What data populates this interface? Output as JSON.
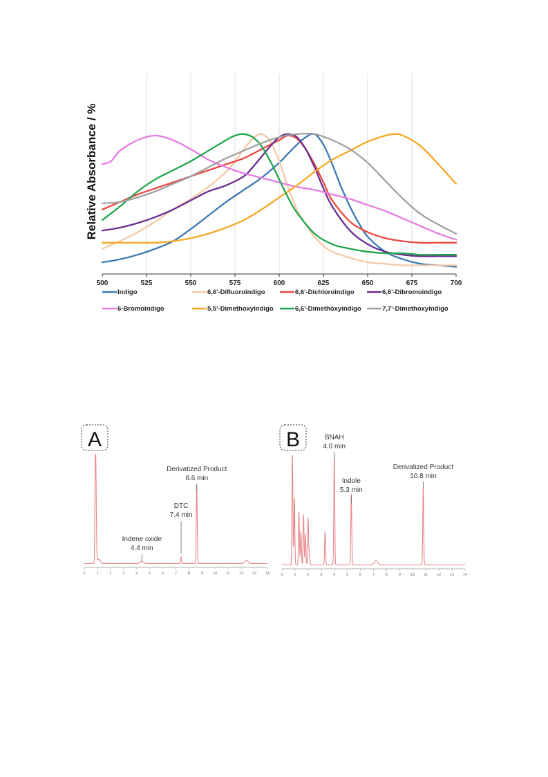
{
  "chart_data": [
    {
      "type": "line",
      "title": "",
      "xlabel": "",
      "ylabel": "Relative Absorbance / %",
      "xlim": [
        500,
        700
      ],
      "ylim": [
        0,
        100
      ],
      "x_ticks": [
        "500",
        "525",
        "550",
        "575",
        "600",
        "625",
        "650",
        "675",
        "700"
      ],
      "grid": "vertical",
      "legend_position": "bottom",
      "series": [
        {
          "name": "Indigo",
          "color": "#3a78b5",
          "x": [
            500,
            510,
            520,
            530,
            540,
            550,
            560,
            570,
            580,
            590,
            600,
            605,
            610,
            615,
            620,
            625,
            630,
            635,
            640,
            645,
            650,
            660,
            670,
            680,
            690,
            700
          ],
          "y": [
            5,
            7,
            10,
            14,
            19,
            27,
            36,
            45,
            53,
            61,
            71,
            77,
            83,
            88,
            90,
            83,
            70,
            55,
            42,
            31,
            22,
            12,
            7,
            4,
            3,
            2
          ]
        },
        {
          "name": "6,6'-Difluoroindigo",
          "color": "#f4c9a6",
          "x": [
            500,
            510,
            520,
            530,
            540,
            550,
            560,
            570,
            575,
            580,
            585,
            590,
            595,
            600,
            605,
            610,
            615,
            620,
            625,
            630,
            640,
            650,
            660,
            670,
            680,
            690,
            700
          ],
          "y": [
            14,
            19,
            25,
            32,
            40,
            47,
            55,
            65,
            72,
            80,
            87,
            90,
            85,
            72,
            55,
            40,
            30,
            22,
            16,
            12,
            8,
            5,
            4,
            3,
            3,
            3,
            3
          ]
        },
        {
          "name": "6,6'-Dichloroindigo",
          "color": "#e9473f",
          "x": [
            500,
            510,
            520,
            530,
            540,
            550,
            560,
            570,
            580,
            590,
            600,
            605,
            610,
            615,
            620,
            625,
            630,
            640,
            650,
            660,
            670,
            680,
            690,
            700
          ],
          "y": [
            40,
            45,
            50,
            54,
            58,
            62,
            66,
            70,
            74,
            80,
            86,
            89,
            87,
            80,
            70,
            58,
            46,
            32,
            25,
            21,
            19,
            18,
            18,
            18
          ]
        },
        {
          "name": "6,6'-Dibromoindigo",
          "color": "#6a2c91",
          "x": [
            500,
            510,
            520,
            530,
            540,
            550,
            560,
            570,
            580,
            585,
            590,
            595,
            600,
            605,
            610,
            615,
            620,
            625,
            630,
            640,
            650,
            660,
            670,
            680,
            690,
            700
          ],
          "y": [
            26,
            28,
            31,
            35,
            40,
            46,
            52,
            56,
            62,
            68,
            75,
            82,
            88,
            90,
            88,
            80,
            68,
            54,
            42,
            26,
            17,
            12,
            10,
            9,
            9,
            9
          ]
        },
        {
          "name": "6-Bromoindigo",
          "color": "#e57be3",
          "x": [
            500,
            505,
            510,
            520,
            530,
            540,
            550,
            560,
            570,
            580,
            590,
            600,
            610,
            620,
            630,
            640,
            650,
            660,
            670,
            680,
            690,
            700
          ],
          "y": [
            70,
            72,
            79,
            86,
            89,
            86,
            80,
            73,
            68,
            64,
            61,
            58,
            55,
            53,
            50,
            47,
            43,
            39,
            34,
            29,
            24,
            20
          ]
        },
        {
          "name": "5,5'-Dimethoxyindigo",
          "color": "#f5a623",
          "x": [
            500,
            510,
            520,
            530,
            540,
            550,
            560,
            570,
            580,
            590,
            600,
            610,
            620,
            630,
            640,
            650,
            660,
            665,
            670,
            680,
            690,
            700
          ],
          "y": [
            18,
            18,
            18,
            18,
            19,
            21,
            24,
            28,
            33,
            40,
            48,
            56,
            65,
            73,
            79,
            85,
            89,
            90,
            89,
            82,
            70,
            57
          ]
        },
        {
          "name": "6,6'-Dimethoxyindigo",
          "color": "#1fa54a",
          "x": [
            500,
            510,
            520,
            530,
            540,
            550,
            560,
            570,
            575,
            580,
            585,
            590,
            595,
            600,
            605,
            610,
            620,
            630,
            640,
            650,
            660,
            670,
            680,
            690,
            700
          ],
          "y": [
            33,
            42,
            52,
            60,
            66,
            72,
            79,
            86,
            89,
            90,
            88,
            82,
            72,
            60,
            48,
            38,
            24,
            17,
            14,
            12,
            11,
            11,
            10,
            10,
            10
          ]
        },
        {
          "name": "7,7'-Dimethoxyindigo",
          "color": "#a0a0a0",
          "x": [
            500,
            510,
            520,
            530,
            540,
            550,
            560,
            570,
            580,
            590,
            600,
            610,
            620,
            630,
            640,
            650,
            660,
            670,
            680,
            690,
            700
          ],
          "y": [
            44,
            45,
            48,
            52,
            57,
            62,
            68,
            74,
            79,
            84,
            88,
            90,
            90,
            86,
            80,
            71,
            59,
            47,
            37,
            30,
            24
          ]
        }
      ]
    },
    {
      "type": "line",
      "panel_label": "A",
      "xlim": [
        0,
        14
      ],
      "ylim": [
        0,
        100
      ],
      "x_ticks": [
        "0",
        "1",
        "2",
        "3",
        "4",
        "5",
        "6",
        "7",
        "8",
        "9",
        "10",
        "11",
        "12",
        "13",
        "14"
      ],
      "color": "#e8878a",
      "peaks": [
        {
          "t": 0.85,
          "h": 100
        },
        {
          "t": 0.9,
          "h": 38
        },
        {
          "t": 1.1,
          "h": 4
        },
        {
          "t": 4.4,
          "h": 2
        },
        {
          "t": 7.4,
          "h": 6
        },
        {
          "t": 8.6,
          "h": 72
        },
        {
          "t": 12.4,
          "h": 3
        }
      ],
      "annotations": [
        {
          "name": "Indene oxide",
          "time": "4.4 min",
          "t": 4.4
        },
        {
          "name": "DTC",
          "time": "7.4 min",
          "t": 7.4
        },
        {
          "name": "Derivatized Product",
          "time": "8.6 min",
          "t": 8.6
        }
      ]
    },
    {
      "type": "line",
      "panel_label": "B",
      "xlim": [
        0,
        14
      ],
      "ylim": [
        0,
        100
      ],
      "x_ticks": [
        "0",
        "1",
        "2",
        "3",
        "4",
        "5",
        "6",
        "7",
        "8",
        "9",
        "10",
        "11",
        "12",
        "13",
        "14"
      ],
      "color": "#e8878a",
      "peaks": [
        {
          "t": 0.8,
          "h": 100
        },
        {
          "t": 0.95,
          "h": 60
        },
        {
          "t": 1.3,
          "h": 48
        },
        {
          "t": 1.45,
          "h": 30
        },
        {
          "t": 1.65,
          "h": 45
        },
        {
          "t": 1.8,
          "h": 28
        },
        {
          "t": 2.0,
          "h": 42
        },
        {
          "t": 2.1,
          "h": 10
        },
        {
          "t": 3.3,
          "h": 30
        },
        {
          "t": 4.0,
          "h": 98
        },
        {
          "t": 5.3,
          "h": 64
        },
        {
          "t": 7.2,
          "h": 4
        },
        {
          "t": 10.8,
          "h": 70
        }
      ],
      "annotations": [
        {
          "name": "BNAH",
          "time": "4.0 min",
          "t": 4.0
        },
        {
          "name": "Indole",
          "time": "5.3 min",
          "t": 5.3
        },
        {
          "name": "Derivatized Product",
          "time": "10.8 min",
          "t": 10.8
        }
      ]
    }
  ]
}
